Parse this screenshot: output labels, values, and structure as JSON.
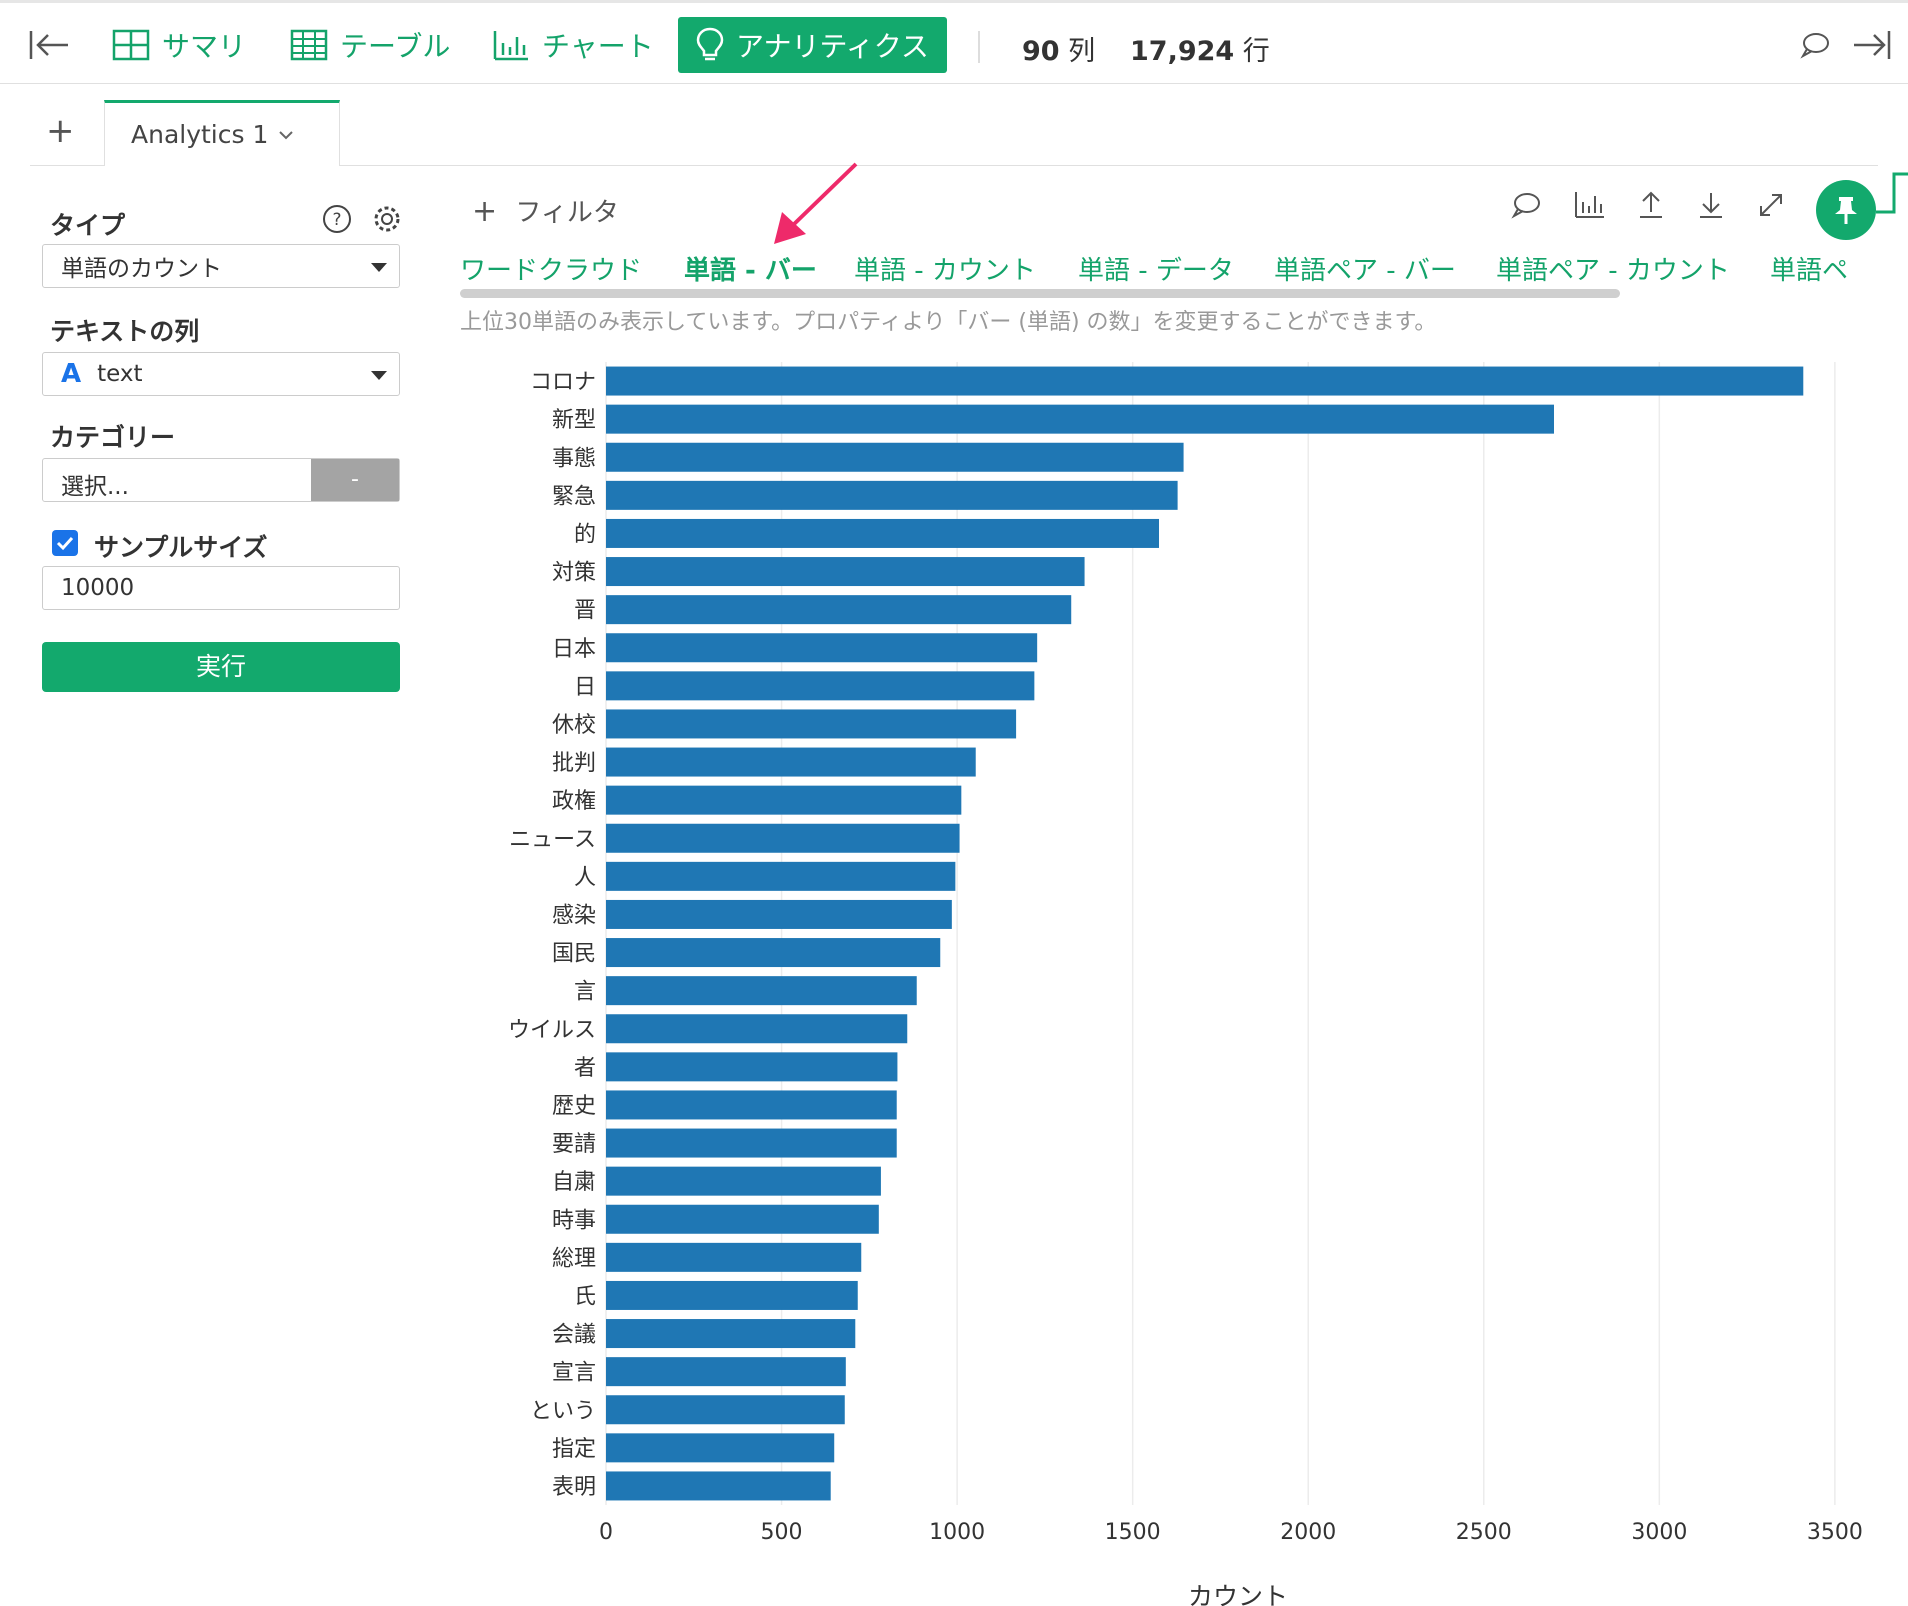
{
  "toolbar": {
    "nav": [
      {
        "label": "サマリ",
        "icon": "summary-grid-icon"
      },
      {
        "label": "テーブル",
        "icon": "table-icon"
      },
      {
        "label": "チャート",
        "icon": "bar-chart-icon"
      },
      {
        "label": "アナリティクス",
        "icon": "lightbulb-icon",
        "active": true
      }
    ],
    "cols_count": "90",
    "cols_unit": "列",
    "rows_count": "17,924",
    "rows_unit": "行"
  },
  "tabs": {
    "items": [
      {
        "label": "Analytics 1"
      }
    ]
  },
  "panel": {
    "type_label": "タイプ",
    "type_value": "単語のカウント",
    "text_col_label": "テキストの列",
    "text_col_icon": "A",
    "text_col_value": "text",
    "category_label": "カテゴリー",
    "category_placeholder": "選択...",
    "category_clear": "-",
    "sample_label": "サンプルサイズ",
    "sample_checked": true,
    "sample_value": "10000",
    "run_label": "実行"
  },
  "main": {
    "filter_label": "フィルタ",
    "subtabs": [
      {
        "label": "ワードクラウド"
      },
      {
        "label": "単語 - バー",
        "active": true
      },
      {
        "label": "単語 - カウント"
      },
      {
        "label": "単語 - データ"
      },
      {
        "label": "単語ペア - バー"
      },
      {
        "label": "単語ペア - カウント"
      },
      {
        "label": "単語ペ"
      }
    ],
    "notice": "上位30単語のみ表示しています。プロパティより「バー (単語) の数」を変更することができます。"
  },
  "colors": {
    "accent": "#13a96d",
    "bar": "#1f77b4",
    "arrow": "#ee2a6a"
  },
  "chart_data": {
    "type": "bar",
    "orientation": "horizontal",
    "categories": [
      "コロナ",
      "新型",
      "事態",
      "緊急",
      "的",
      "対策",
      "晋",
      "日本",
      "日",
      "休校",
      "批判",
      "政権",
      "ニュース",
      "人",
      "感染",
      "国民",
      "言",
      "ウイルス",
      "者",
      "歴史",
      "要請",
      "自粛",
      "時事",
      "総理",
      "氏",
      "会議",
      "宣言",
      "という",
      "指定",
      "表明"
    ],
    "values": [
      3410,
      2700,
      1645,
      1628,
      1575,
      1363,
      1325,
      1228,
      1220,
      1168,
      1053,
      1012,
      1007,
      995,
      985,
      952,
      885,
      858,
      830,
      828,
      828,
      783,
      777,
      727,
      717,
      710,
      683,
      680,
      650,
      640
    ],
    "xlabel": "カウント",
    "ylabel": "",
    "xlim": [
      0,
      3600
    ],
    "xticks": [
      0,
      500,
      1000,
      1500,
      2000,
      2500,
      3000,
      3500
    ],
    "grid": true,
    "legend": "none"
  }
}
